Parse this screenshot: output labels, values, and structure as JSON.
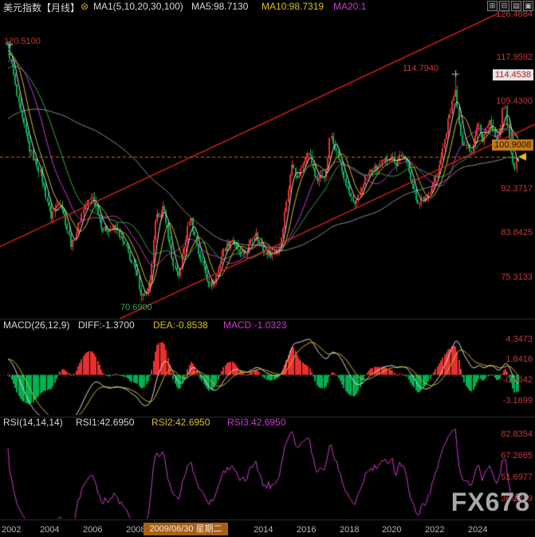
{
  "header": {
    "title": "美元指数【月线】",
    "settings_icon": "⊜",
    "ma_group": "MA1(5,10,20,30,100)",
    "ma5": "MA5:98.7130",
    "ma10": "MA10:98.7319",
    "ma20": "MA20:1"
  },
  "toolbar": {
    "icons": [
      {
        "name": "compare",
        "glyph": "⊞"
      },
      {
        "name": "overlay",
        "glyph": "⊟"
      },
      {
        "name": "indicator-list",
        "glyph": "▤"
      },
      {
        "name": "fullscreen",
        "glyph": "▣"
      }
    ]
  },
  "main": {
    "axis_labels": [
      "126.4884",
      "117.9592",
      "109.4300",
      "92.3717",
      "83.8425",
      "75.3133"
    ],
    "crosshair_price": "114.4538",
    "current_price_label": "100.9008",
    "annotations": {
      "left_high": "120.5100",
      "peak_high": "114.7940",
      "low": "70.6900"
    }
  },
  "macd": {
    "label": "MACD(26,12,9)",
    "diff": "DIFF:-1.3700",
    "dea": "DEA:-0.8538",
    "macd": "MACD:-1.0323",
    "axis": [
      "4.3473",
      "1.8416",
      "-0.6642",
      "-3.1699"
    ]
  },
  "rsi": {
    "label": "RSI(14,14,14)",
    "rsi1": "RSI1:42.6950",
    "rsi2": "RSI2:42.6950",
    "rsi3": "RSI3:42.6950",
    "axis": [
      "82.8354",
      "67.2665",
      "51.6977",
      "36.1289"
    ]
  },
  "timeline": {
    "labels": [
      "2002",
      "2004",
      "2006",
      "2008",
      "2014",
      "2016",
      "2018",
      "2020",
      "2022",
      "2024"
    ],
    "highlight": "2009/06/30 星期二"
  },
  "watermark": "FX678",
  "chart_data": {
    "type": "candlestick",
    "title": "美元指数 月线 (US Dollar Index, monthly)",
    "x_range": [
      2002.0,
      2025.667
    ],
    "y_range": [
      67.27,
      126.4884
    ],
    "y_ticks": [
      126.4884,
      117.9592,
      109.43,
      100.9008,
      92.3717,
      83.8425,
      75.3133
    ],
    "current_price": 98.71,
    "key_points": {
      "start_high": 120.51,
      "low_2008": 70.69,
      "high_2022": 114.794,
      "last_close": 98.7
    },
    "monthly_close_keyframes": [
      [
        2002.0,
        120.2
      ],
      [
        2002.5,
        108.5
      ],
      [
        2003.0,
        100.2
      ],
      [
        2003.5,
        95.5
      ],
      [
        2004.0,
        87.2
      ],
      [
        2004.4,
        90.5
      ],
      [
        2004.95,
        81.2
      ],
      [
        2005.5,
        88.8
      ],
      [
        2005.95,
        91.0
      ],
      [
        2006.4,
        84.6
      ],
      [
        2007.0,
        84.8
      ],
      [
        2007.5,
        80.8
      ],
      [
        2007.95,
        76.0
      ],
      [
        2008.2,
        71.6
      ],
      [
        2008.55,
        72.8
      ],
      [
        2008.85,
        86.5
      ],
      [
        2009.2,
        89.0
      ],
      [
        2009.6,
        78.6
      ],
      [
        2009.9,
        75.0
      ],
      [
        2010.0,
        77.5
      ],
      [
        2010.45,
        87.3
      ],
      [
        2010.85,
        79.7
      ],
      [
        2011.1,
        77.2
      ],
      [
        2011.35,
        73.8
      ],
      [
        2011.6,
        74.6
      ],
      [
        2011.95,
        80.2
      ],
      [
        2012.4,
        82.9
      ],
      [
        2012.7,
        79.9
      ],
      [
        2013.0,
        79.8
      ],
      [
        2013.5,
        84.3
      ],
      [
        2013.8,
        80.3
      ],
      [
        2014.3,
        79.9
      ],
      [
        2014.6,
        81.4
      ],
      [
        2015.0,
        92.6
      ],
      [
        2015.2,
        98.2
      ],
      [
        2015.4,
        94.1
      ],
      [
        2015.9,
        100.2
      ],
      [
        2016.3,
        94.2
      ],
      [
        2016.75,
        95.6
      ],
      [
        2016.95,
        103.2
      ],
      [
        2017.2,
        100.4
      ],
      [
        2017.7,
        92.9
      ],
      [
        2018.1,
        88.9
      ],
      [
        2018.6,
        95.0
      ],
      [
        2018.95,
        96.2
      ],
      [
        2019.4,
        97.6
      ],
      [
        2019.75,
        99.0
      ],
      [
        2020.0,
        97.4
      ],
      [
        2020.2,
        99.4
      ],
      [
        2020.55,
        96.8
      ],
      [
        2020.95,
        89.9
      ],
      [
        2021.4,
        90.6
      ],
      [
        2021.95,
        95.8
      ],
      [
        2022.3,
        103.0
      ],
      [
        2022.72,
        112.2
      ],
      [
        2023.0,
        102.2
      ],
      [
        2023.5,
        99.9
      ],
      [
        2023.8,
        106.0
      ],
      [
        2024.0,
        101.4
      ],
      [
        2024.3,
        106.2
      ],
      [
        2024.7,
        100.8
      ],
      [
        2024.95,
        108.4
      ],
      [
        2025.1,
        107.8
      ],
      [
        2025.3,
        99.6
      ],
      [
        2025.5,
        96.9
      ],
      [
        2025.7,
        98.7
      ]
    ],
    "trendlines": [
      {
        "t1": 2001.6,
        "v1": 81.2,
        "t2": 2025.5,
        "v2": 128.0
      },
      {
        "t1": 2007.2,
        "v1": 67.3,
        "t2": 2026.6,
        "v2": 105.3
      }
    ],
    "indicators": {
      "ma_periods": [
        5,
        10,
        20,
        30,
        100
      ],
      "macd": {
        "params": [
          26,
          12,
          9
        ],
        "diff": -1.37,
        "dea": -0.8538,
        "macd": -1.0323,
        "range": [
          -4.94,
          5.33
        ],
        "ticks": [
          4.3473,
          1.8416,
          -0.6642,
          -3.1699
        ]
      },
      "rsi": {
        "params": [
          14,
          14,
          14
        ],
        "value": 42.695,
        "range": [
          22,
          88
        ],
        "ticks": [
          82.8354,
          67.2665,
          51.6977,
          36.1289
        ]
      }
    },
    "colors": {
      "up": "#e83030",
      "down": "#00b050",
      "ma5": "#e0e0e0",
      "ma10": "#d8c019",
      "ma20": "#cc3bcc",
      "ma30": "#2faa4f",
      "ma100": "#8f8f8f",
      "trend": "#dd1f1f",
      "price_line": "#c8781e",
      "diff": "#e0e0e0",
      "dea": "#d8c019",
      "rsi": "#cc3bcc",
      "axis_text": "#c23a3a",
      "highlight_box": "#c07818"
    }
  }
}
